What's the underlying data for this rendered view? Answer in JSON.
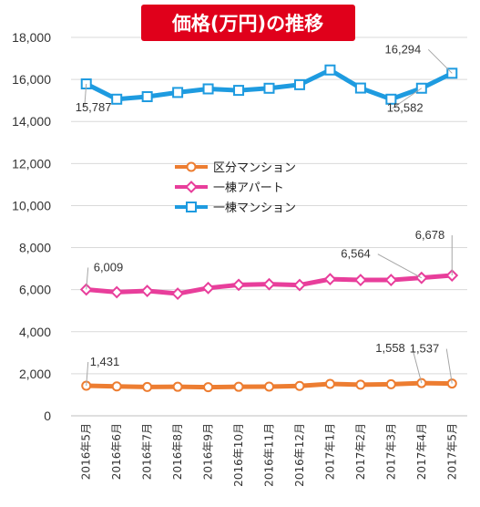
{
  "chart_data": {
    "type": "line",
    "title": "価格(万円)の推移",
    "categories": [
      "2016年5月",
      "2016年6月",
      "2016年7月",
      "2016年8月",
      "2016年9月",
      "2016年10月",
      "2016年11月",
      "2016年12月",
      "2017年1月",
      "2017年2月",
      "2017年3月",
      "2017年4月",
      "2017年5月"
    ],
    "ylim": [
      0,
      18000
    ],
    "yticks": [
      "0",
      "2,000",
      "4,000",
      "6,000",
      "8,000",
      "10,000",
      "12,000",
      "14,000",
      "16,000",
      "18,000"
    ],
    "grid": true,
    "legend_position": "center",
    "series": [
      {
        "name": "区分マンション",
        "color": "#ED7D31",
        "marker": "circle",
        "values": [
          1431,
          1400,
          1370,
          1380,
          1360,
          1380,
          1390,
          1420,
          1520,
          1480,
          1500,
          1558,
          1537
        ]
      },
      {
        "name": "一棟アパート",
        "color": "#E83E9B",
        "marker": "diamond",
        "values": [
          6009,
          5880,
          5940,
          5810,
          6080,
          6230,
          6260,
          6220,
          6500,
          6460,
          6460,
          6564,
          6678
        ]
      },
      {
        "name": "一棟マンション",
        "color": "#1E9BE0",
        "marker": "square",
        "values": [
          15787,
          15060,
          15180,
          15380,
          15550,
          15480,
          15580,
          15750,
          16450,
          15590,
          15060,
          15582,
          16294
        ]
      }
    ],
    "data_labels": [
      {
        "series": 2,
        "index": 0,
        "text": "15,787"
      },
      {
        "series": 2,
        "index": 11,
        "text": "15,582"
      },
      {
        "series": 2,
        "index": 12,
        "text": "16,294"
      },
      {
        "series": 1,
        "index": 0,
        "text": "6,009"
      },
      {
        "series": 1,
        "index": 11,
        "text": "6,564"
      },
      {
        "series": 1,
        "index": 12,
        "text": "6,678"
      },
      {
        "series": 0,
        "index": 0,
        "text": "1,431"
      },
      {
        "series": 0,
        "index": 11,
        "text": "1,558"
      },
      {
        "series": 0,
        "index": 12,
        "text": "1,537"
      }
    ]
  },
  "colors": {
    "title_bg": "#E0001B",
    "grid": "#D9D9D9",
    "axis": "#BFBFBF",
    "label_line": "#A6A6A6"
  }
}
